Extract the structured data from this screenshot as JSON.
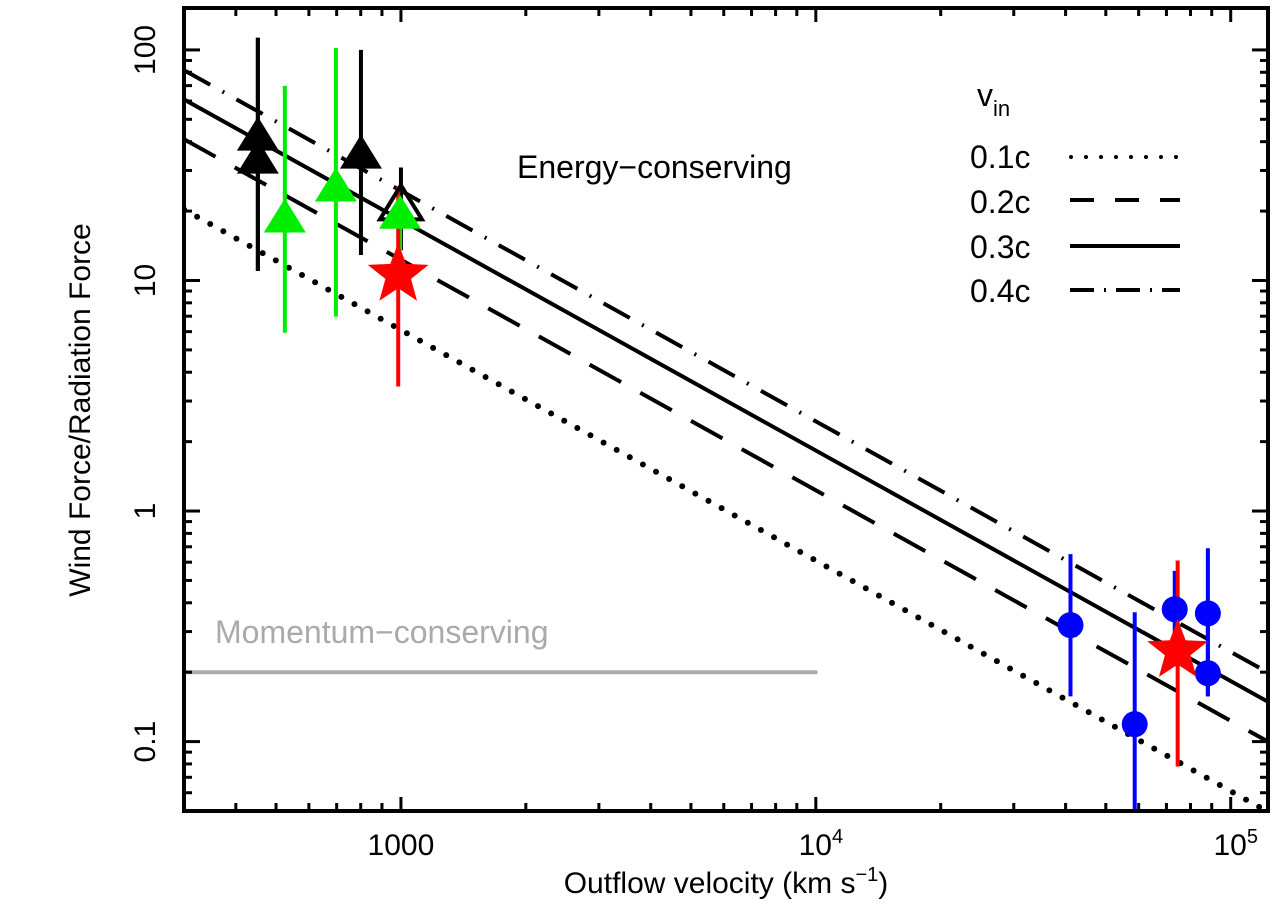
{
  "chart_data": {
    "type": "scatter",
    "xlabel": "Outflow velocity (km s",
    "xlabel_sup": "−1",
    "xlabel_close": ")",
    "ylabel": "Wind Force/Radiation Force",
    "xscale": "log",
    "yscale": "log",
    "xlim": [
      300,
      123000
    ],
    "ylim": [
      0.05,
      152
    ],
    "x_ticks": [
      {
        "value": 1000,
        "base": "1000",
        "sup": ""
      },
      {
        "value": 10000,
        "base": "10",
        "sup": "4"
      },
      {
        "value": 100000,
        "base": "10",
        "sup": "5"
      }
    ],
    "y_ticks": [
      {
        "value": 0.1,
        "label": "0.1"
      },
      {
        "value": 1,
        "label": "1"
      },
      {
        "value": 10,
        "label": "10"
      },
      {
        "value": 100,
        "label": "100"
      }
    ],
    "grid": false,
    "annotations": {
      "energy": "Energy−conserving",
      "momentum": "Momentum−conserving"
    },
    "legend": {
      "title": "v",
      "title_sub": "in",
      "position": "top-right",
      "entries": [
        {
          "label": "0.1c",
          "style": "dotted"
        },
        {
          "label": "0.2c",
          "style": "dashed"
        },
        {
          "label": "0.3c",
          "style": "solid"
        },
        {
          "label": "0.4c",
          "style": "dashdot"
        }
      ]
    },
    "model_lines": [
      {
        "name": "0.1c",
        "style": "dotted",
        "value_at_1000": 6.1,
        "slope": -1
      },
      {
        "name": "0.2c",
        "style": "dashed",
        "value_at_1000": 12.3,
        "slope": -1
      },
      {
        "name": "0.3c",
        "style": "solid",
        "value_at_1000": 18.3,
        "slope": -1
      },
      {
        "name": "0.4c",
        "style": "dashdot",
        "value_at_1000": 24.5,
        "slope": -1
      }
    ],
    "momentum_line": {
      "y": 0.2,
      "x_start": 300,
      "x_end": 10000,
      "color": "#aaaaaa"
    },
    "series": [
      {
        "name": "black-triangles",
        "marker": "triangle",
        "color": "#000000",
        "points": [
          {
            "x": 452,
            "y": 41.9,
            "ylo": 11.0,
            "yhi": 113
          },
          {
            "x": 452,
            "y": 33.3,
            "ylo": 11.0,
            "yhi": 113
          },
          {
            "x": 801,
            "y": 35.0,
            "ylo": 12.9,
            "yhi": 100
          },
          {
            "x": 1000,
            "y": 21.1,
            "ylo": 13.5,
            "yhi": 30.9,
            "open": true
          }
        ]
      },
      {
        "name": "green-triangles",
        "marker": "triangle",
        "color": "#00ee00",
        "points": [
          {
            "x": 525,
            "y": 18.5,
            "ylo": 5.93,
            "yhi": 69.8
          },
          {
            "x": 697,
            "y": 25.2,
            "ylo": 6.96,
            "yhi": 102
          },
          {
            "x": 995,
            "y": 19.2,
            "ylo": 13.5,
            "yhi": 21.0
          }
        ]
      },
      {
        "name": "blue-circles",
        "marker": "circle",
        "color": "#0000ff",
        "points": [
          {
            "x": 41100,
            "y": 0.32,
            "ylo": 0.157,
            "yhi": 0.65
          },
          {
            "x": 58700,
            "y": 0.119,
            "ylo": 0.05,
            "yhi": 0.364
          },
          {
            "x": 73300,
            "y": 0.375,
            "ylo": 0.25,
            "yhi": 0.55
          },
          {
            "x": 88100,
            "y": 0.36,
            "ylo": 0.157,
            "yhi": 0.69
          },
          {
            "x": 88100,
            "y": 0.198,
            "ylo": 0.157,
            "yhi": 0.36
          }
        ]
      },
      {
        "name": "red-stars",
        "marker": "star",
        "color": "#ff0000",
        "points": [
          {
            "x": 985,
            "y": 10.8,
            "ylo": 3.47,
            "yhi": 25.6
          },
          {
            "x": 74500,
            "y": 0.252,
            "ylo": 0.078,
            "yhi": 0.61
          }
        ]
      }
    ]
  }
}
